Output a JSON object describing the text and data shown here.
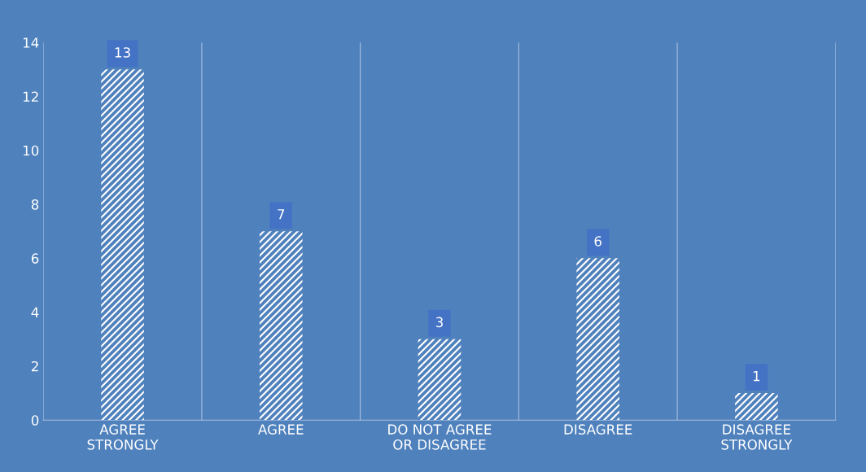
{
  "chart_data": {
    "type": "bar",
    "categories": [
      "AGREE\nSTRONGLY",
      "AGREE",
      "DO NOT AGREE\nOR DISAGREE",
      "DISAGREE",
      "DISAGREE\nSTRONGLY"
    ],
    "values": [
      13,
      7,
      3,
      6,
      1
    ],
    "color": "#ffffff",
    "ylim": [
      0,
      14
    ],
    "yticks": [
      0,
      2,
      4,
      6,
      8,
      10,
      12,
      14
    ],
    "grid": "x",
    "data_labels": true
  }
}
